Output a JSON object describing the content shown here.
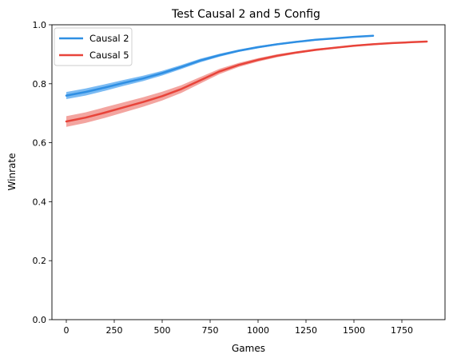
{
  "chart_data": {
    "type": "line",
    "title": "Test Causal 2 and 5 Config",
    "xlabel": "Games",
    "ylabel": "Winrate",
    "xlim": [
      -75,
      1975
    ],
    "ylim": [
      0.0,
      1.0
    ],
    "xticks": [
      0,
      250,
      500,
      750,
      1000,
      1250,
      1500,
      1750
    ],
    "yticks": [
      0.0,
      0.2,
      0.4,
      0.6,
      0.8,
      1.0
    ],
    "xtick_labels": [
      "0",
      "250",
      "500",
      "750",
      "1000",
      "1250",
      "1500",
      "1750"
    ],
    "ytick_labels": [
      "0.0",
      "0.2",
      "0.4",
      "0.6",
      "0.8",
      "1.0"
    ],
    "grid": false,
    "legend_position": "top-left",
    "series": [
      {
        "name": "Causal 2",
        "color": "#2f8fe3",
        "band_color": "#5aaaf0",
        "x": [
          0,
          100,
          200,
          300,
          400,
          500,
          600,
          700,
          800,
          900,
          1000,
          1100,
          1200,
          1300,
          1400,
          1500,
          1600
        ],
        "y": [
          0.76,
          0.772,
          0.787,
          0.803,
          0.818,
          0.836,
          0.857,
          0.879,
          0.897,
          0.912,
          0.924,
          0.934,
          0.942,
          0.949,
          0.954,
          0.959,
          0.963
        ],
        "band": [
          0.012,
          0.012,
          0.011,
          0.01,
          0.009,
          0.008,
          0.007,
          0.006,
          0.005,
          0.004,
          0.004,
          0.003,
          0.003,
          0.003,
          0.002,
          0.002,
          0.002
        ]
      },
      {
        "name": "Causal 5",
        "color": "#e8443a",
        "band_color": "#f08f88",
        "x": [
          0,
          100,
          200,
          300,
          400,
          500,
          600,
          700,
          800,
          900,
          1000,
          1100,
          1200,
          1300,
          1400,
          1500,
          1600,
          1700,
          1800,
          1880
        ],
        "y": [
          0.672,
          0.685,
          0.702,
          0.72,
          0.738,
          0.758,
          0.782,
          0.812,
          0.842,
          0.864,
          0.881,
          0.895,
          0.906,
          0.915,
          0.922,
          0.929,
          0.934,
          0.938,
          0.941,
          0.943
        ],
        "band": [
          0.018,
          0.018,
          0.018,
          0.017,
          0.016,
          0.015,
          0.013,
          0.011,
          0.009,
          0.007,
          0.006,
          0.005,
          0.004,
          0.004,
          0.003,
          0.003,
          0.003,
          0.002,
          0.002,
          0.002
        ]
      }
    ]
  }
}
